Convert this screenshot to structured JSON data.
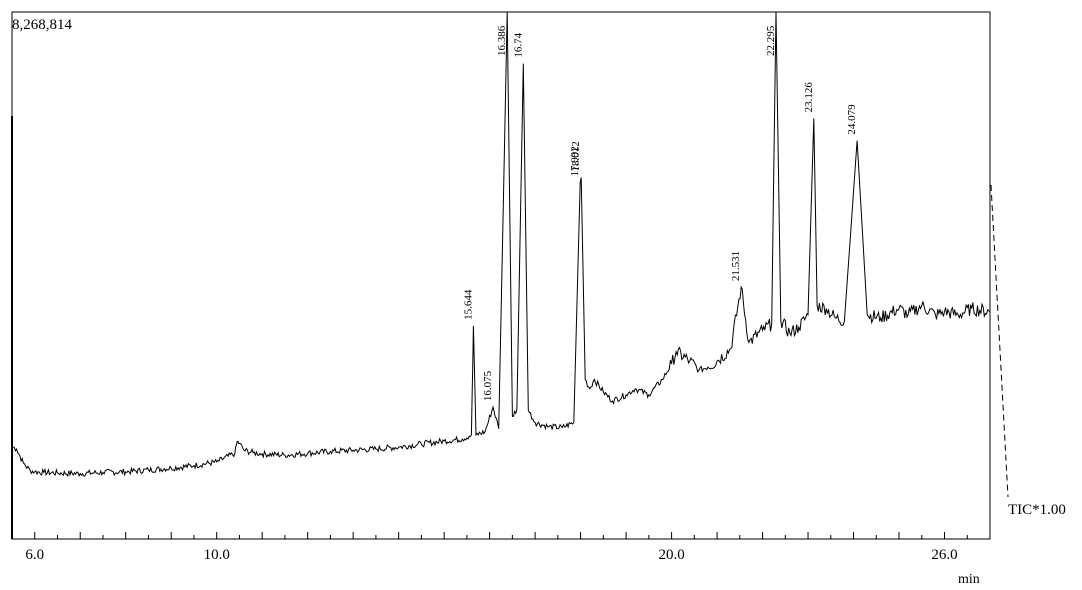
{
  "chart_data": {
    "type": "line",
    "title": "",
    "y_max_label": "8,268,814",
    "x_unit": "min",
    "trace_label": "TIC*1.00",
    "xlim": [
      5.5,
      27.0
    ],
    "ylim": [
      0,
      8268814
    ],
    "x_ticks": [
      6.0,
      10.0,
      20.0,
      26.0
    ],
    "x_tick_labels": [
      "6.0",
      "10.0",
      "20.0",
      "26.0"
    ],
    "peak_labels": [
      {
        "rt": 15.644,
        "label": "15.644"
      },
      {
        "rt": 16.075,
        "label": "16.075"
      },
      {
        "rt": 16.386,
        "label": "16.386"
      },
      {
        "rt": 16.74,
        "label": "16.74"
      },
      {
        "rt": 17.992,
        "label": "17.992"
      },
      {
        "rt": 18.012,
        "label": "18.012"
      },
      {
        "rt": 21.531,
        "label": "21.531"
      },
      {
        "rt": 22.295,
        "label": "22.295"
      },
      {
        "rt": 23.126,
        "label": "23.126"
      },
      {
        "rt": 24.079,
        "label": "24.079"
      }
    ],
    "series": [
      {
        "x": [
          5.5,
          5.6,
          5.75,
          5.9,
          6.0,
          6.2,
          6.5,
          7.0,
          7.5,
          8.0,
          8.5,
          9.0,
          9.5,
          10.0,
          10.4,
          10.45,
          10.5,
          10.6,
          10.8,
          11.0,
          11.5,
          12.0,
          12.5,
          13.0,
          13.5,
          14.0,
          14.5,
          15.0,
          15.4,
          15.6,
          15.644,
          15.7,
          15.9,
          16.075,
          16.2,
          16.386,
          16.5,
          16.6,
          16.74,
          16.85,
          17.0,
          17.3,
          17.6,
          17.85,
          17.992,
          18.012,
          18.1,
          18.2,
          18.3,
          18.5,
          18.7,
          19.0,
          19.2,
          19.5,
          19.8,
          20.0,
          20.1,
          20.4,
          20.6,
          20.8,
          21.0,
          21.3,
          21.531,
          21.7,
          22.0,
          22.2,
          22.295,
          22.4,
          22.6,
          22.8,
          23.0,
          23.126,
          23.2,
          23.4,
          23.6,
          23.8,
          24.079,
          24.3,
          24.6,
          25.0,
          25.2,
          25.5,
          25.8,
          26.0,
          26.3,
          26.6,
          27.0
        ],
        "y": [
          1210000,
          1170000,
          940000,
          820000,
          800000,
          790000,
          780000,
          770000,
          790000,
          800000,
          830000,
          860000,
          900000,
          960000,
          1100000,
          1290000,
          1260000,
          1150000,
          1110000,
          1090000,
          1070000,
          1100000,
          1130000,
          1150000,
          1170000,
          1200000,
          1250000,
          1300000,
          1330000,
          1400000,
          3170000,
          1400000,
          1450000,
          1850000,
          1500000,
          8268814,
          1700000,
          1820000,
          7430000,
          1800000,
          1600000,
          1530000,
          1520000,
          1600000,
          5500000,
          5580000,
          2300000,
          2150000,
          2300000,
          2100000,
          1950000,
          2050000,
          2150000,
          2050000,
          2300000,
          2550000,
          2750000,
          2600000,
          2450000,
          2500000,
          2600000,
          2800000,
          3800000,
          2900000,
          3100000,
          3200000,
          8268814,
          3250000,
          3050000,
          3150000,
          3350000,
          6540000,
          3500000,
          3450000,
          3300000,
          3250000,
          6180000,
          3350000,
          3300000,
          3450000,
          3350000,
          3500000,
          3350000,
          3400000,
          3350000,
          3450000,
          3400000
        ]
      }
    ]
  }
}
